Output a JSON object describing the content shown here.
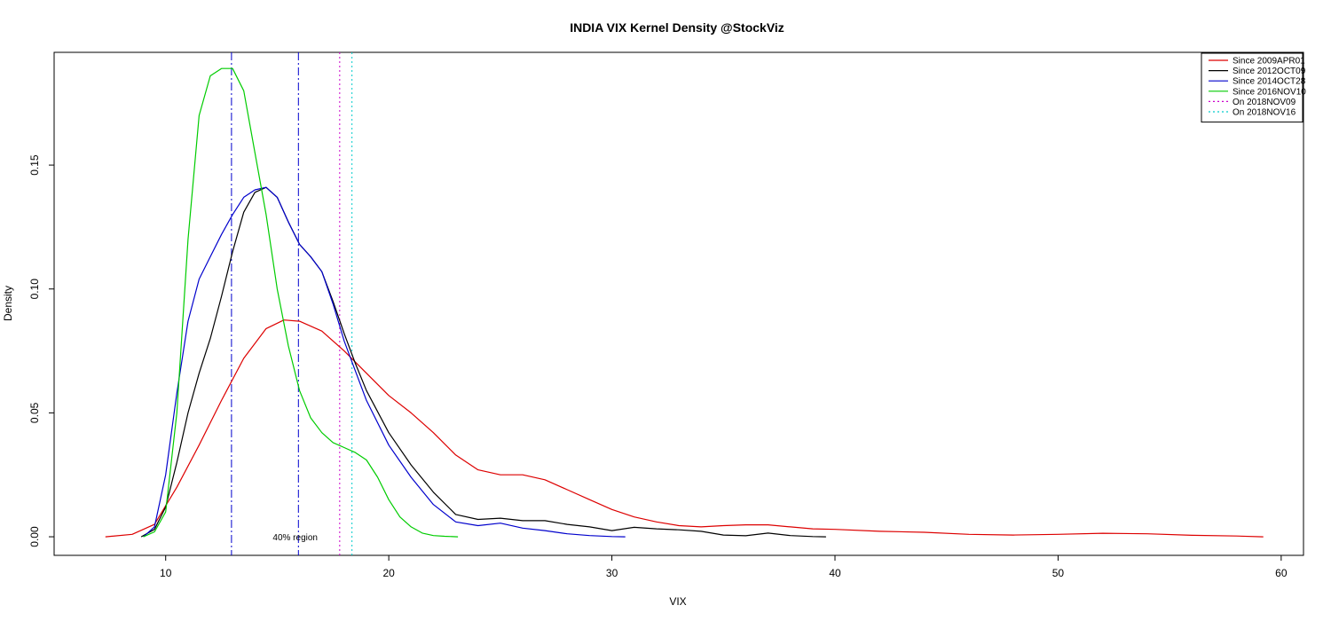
{
  "chart_data": {
    "type": "line",
    "title": "INDIA VIX Kernel Density @StockViz",
    "xlabel": "VIX",
    "ylabel": "Density",
    "xlim": [
      5,
      61
    ],
    "ylim": [
      -0.0075,
      0.1955
    ],
    "x_ticks": [
      10,
      20,
      30,
      40,
      50,
      60
    ],
    "y_ticks": [
      0.0,
      0.05,
      0.1,
      0.15
    ],
    "y_tick_labels": [
      "0.00",
      "0.05",
      "0.10",
      "0.15"
    ],
    "legend_position": "top-right",
    "annotation": {
      "text": "40% region",
      "x": 14.8,
      "y": 0.0
    },
    "series": [
      {
        "name": "Since 2009APR01",
        "color": "#dd0000",
        "x": [
          7.3,
          8.5,
          9.5,
          10.5,
          11.5,
          12.5,
          13.5,
          14.5,
          15.3,
          16,
          17,
          18,
          19,
          20,
          21,
          22,
          23,
          24,
          25,
          26,
          27,
          28,
          29,
          30,
          31,
          32,
          33,
          34,
          35,
          36,
          37,
          38,
          39,
          40,
          42,
          44,
          46,
          48,
          50,
          52,
          54,
          56,
          58,
          59.2
        ],
        "y": [
          0.0,
          0.001,
          0.005,
          0.02,
          0.037,
          0.055,
          0.072,
          0.084,
          0.0875,
          0.087,
          0.083,
          0.075,
          0.066,
          0.057,
          0.05,
          0.042,
          0.033,
          0.027,
          0.025,
          0.025,
          0.023,
          0.019,
          0.015,
          0.011,
          0.008,
          0.006,
          0.0045,
          0.004,
          0.0045,
          0.0048,
          0.0048,
          0.004,
          0.0032,
          0.003,
          0.0022,
          0.0018,
          0.001,
          0.0007,
          0.001,
          0.0014,
          0.0012,
          0.0006,
          0.0003,
          0.0
        ]
      },
      {
        "name": "Since 2012OCT09",
        "color": "#000000",
        "x": [
          8.9,
          9.5,
          10,
          10.5,
          11,
          11.5,
          12,
          12.5,
          13,
          13.5,
          14,
          14.5,
          15,
          15.5,
          16,
          16.5,
          17,
          17.5,
          18,
          18.5,
          19,
          20,
          21,
          22,
          23,
          24,
          25,
          26,
          27,
          28,
          29,
          30,
          31,
          32,
          33,
          34,
          35,
          36,
          37,
          38,
          39,
          39.6
        ],
        "y": [
          0.0,
          0.003,
          0.012,
          0.03,
          0.05,
          0.066,
          0.08,
          0.097,
          0.115,
          0.131,
          0.139,
          0.141,
          0.137,
          0.127,
          0.118,
          0.113,
          0.107,
          0.095,
          0.082,
          0.07,
          0.059,
          0.042,
          0.029,
          0.018,
          0.009,
          0.007,
          0.0075,
          0.0065,
          0.0065,
          0.005,
          0.004,
          0.0025,
          0.0038,
          0.0032,
          0.0028,
          0.0022,
          0.0007,
          0.0004,
          0.0015,
          0.0005,
          0.0001,
          0.0
        ]
      },
      {
        "name": "Since 2014OCT28",
        "color": "#0000cc",
        "x": [
          9.0,
          9.5,
          10,
          10.5,
          11,
          11.5,
          12,
          12.5,
          13,
          13.5,
          14,
          14.5,
          15,
          15.5,
          16,
          16.5,
          17,
          17.5,
          18,
          18.5,
          19,
          20,
          21,
          22,
          23,
          24,
          25,
          26,
          27,
          28,
          29,
          30,
          30.6
        ],
        "y": [
          0.0,
          0.004,
          0.025,
          0.058,
          0.087,
          0.104,
          0.113,
          0.122,
          0.13,
          0.137,
          0.14,
          0.141,
          0.137,
          0.127,
          0.118,
          0.113,
          0.107,
          0.094,
          0.079,
          0.067,
          0.055,
          0.037,
          0.024,
          0.013,
          0.006,
          0.0045,
          0.0055,
          0.0035,
          0.0025,
          0.0012,
          0.0005,
          0.0001,
          0.0
        ]
      },
      {
        "name": "Since 2016NOV10",
        "color": "#00cc00",
        "x": [
          9.0,
          9.5,
          10,
          10.5,
          11,
          11.5,
          12,
          12.5,
          13,
          13.5,
          14,
          14.5,
          15,
          15.5,
          16,
          16.5,
          17,
          17.5,
          18,
          18.5,
          19,
          19.5,
          20,
          20.5,
          21,
          21.5,
          22,
          22.5,
          23.1
        ],
        "y": [
          0.0,
          0.002,
          0.01,
          0.05,
          0.12,
          0.17,
          0.186,
          0.189,
          0.189,
          0.18,
          0.155,
          0.13,
          0.1,
          0.077,
          0.059,
          0.048,
          0.042,
          0.038,
          0.036,
          0.034,
          0.031,
          0.024,
          0.015,
          0.008,
          0.004,
          0.0015,
          0.0005,
          0.0002,
          0.0
        ]
      }
    ],
    "vlines": [
      {
        "x": 12.95,
        "color": "#0000cc",
        "style": "dashdot",
        "legend": false
      },
      {
        "x": 15.95,
        "color": "#0000cc",
        "style": "dashdot",
        "legend": false
      },
      {
        "name": "On 2018NOV09",
        "x": 17.8,
        "color": "#cc00cc",
        "style": "dotted",
        "legend": true
      },
      {
        "name": "On 2018NOV16",
        "x": 18.35,
        "color": "#00cccc",
        "style": "dotted",
        "legend": true
      }
    ]
  }
}
